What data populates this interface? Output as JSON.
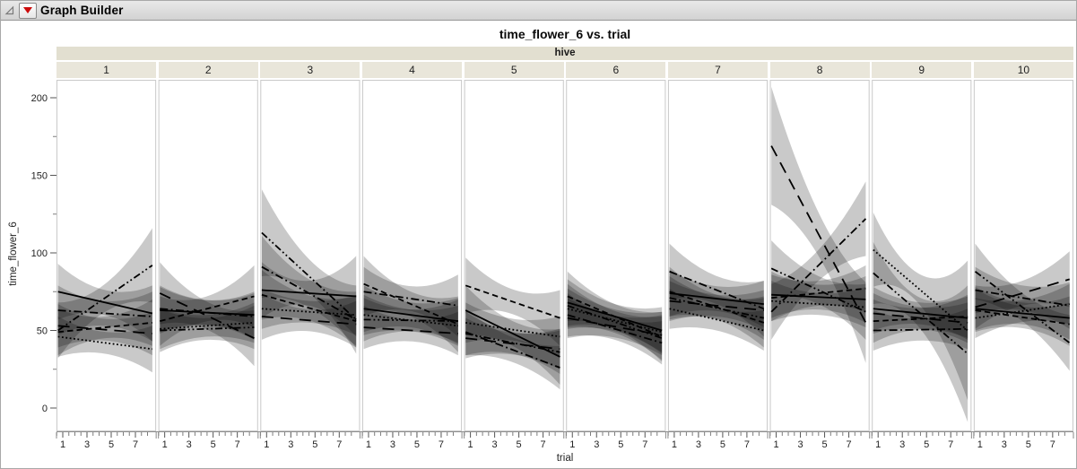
{
  "window": {
    "title": "Graph Builder"
  },
  "chart_data": {
    "type": "line",
    "title": "time_flower_6 vs. trial",
    "xlabel": "trial",
    "ylabel": "time_flower_6",
    "facet": {
      "label": "hive",
      "panels": [
        "1",
        "2",
        "3",
        "4",
        "5",
        "6",
        "7",
        "8",
        "9",
        "10"
      ]
    },
    "x_ticks_labeled": [
      1,
      3,
      5,
      7
    ],
    "x_minor_step": 0.5,
    "x_domain": [
      0.6,
      8.4
    ],
    "y_ticks_labeled": [
      0,
      50,
      100,
      150,
      200
    ],
    "y_minor_ticks": [
      25,
      75,
      125,
      175
    ],
    "y_domain": [
      -15,
      211
    ],
    "grid": false,
    "legend": "none",
    "band_fill": "rgba(0,0,0,0.21)",
    "line_color": "#000000",
    "line_styles": [
      "solid",
      "dash",
      "dot",
      "dash-dot",
      "dash-dot-dot",
      "long-dash"
    ],
    "description": "Per-hive linear fits of time_flower_6 on trial (1-8) with shaded confidence bands; y values given at trial=1 and trial=8; band = half-width at [start, middle, end].",
    "panels": [
      {
        "label": "1",
        "lines": [
          {
            "style": "solid",
            "y": [
              75,
              61
            ],
            "band": [
              18,
              8,
              18
            ]
          },
          {
            "style": "dash",
            "y": [
              49,
              55
            ],
            "band": [
              15,
              7,
              15
            ]
          },
          {
            "style": "dot",
            "y": [
              46,
              38
            ],
            "band": [
              13,
              7,
              15
            ]
          },
          {
            "style": "dash-dot",
            "y": [
              63,
              59
            ],
            "band": [
              16,
              8,
              16
            ]
          },
          {
            "style": "dash-dot-dot",
            "y": [
              50,
              92
            ],
            "band": [
              18,
              9,
              24
            ]
          },
          {
            "style": "long-dash",
            "y": [
              53,
              48
            ],
            "band": [
              14,
              7,
              14
            ]
          }
        ]
      },
      {
        "label": "2",
        "lines": [
          {
            "style": "solid",
            "y": [
              63,
              60
            ],
            "band": [
              15,
              8,
              15
            ]
          },
          {
            "style": "dash",
            "y": [
              56,
              72
            ],
            "band": [
              16,
              8,
              20
            ]
          },
          {
            "style": "dot",
            "y": [
              51,
              55
            ],
            "band": [
              13,
              7,
              13
            ]
          },
          {
            "style": "dash-dot",
            "y": [
              64,
              59
            ],
            "band": [
              15,
              8,
              15
            ]
          },
          {
            "style": "dash-dot-dot",
            "y": [
              50,
              52
            ],
            "band": [
              14,
              7,
              14
            ]
          },
          {
            "style": "long-dash",
            "y": [
              74,
              45
            ],
            "band": [
              20,
              9,
              18
            ]
          }
        ]
      },
      {
        "label": "3",
        "lines": [
          {
            "style": "solid",
            "y": [
              76,
              72
            ],
            "band": [
              18,
              8,
              26
            ]
          },
          {
            "style": "dash",
            "y": [
              73,
              56
            ],
            "band": [
              16,
              8,
              16
            ]
          },
          {
            "style": "dot",
            "y": [
              64,
              60
            ],
            "band": [
              13,
              7,
              13
            ]
          },
          {
            "style": "dash-dot",
            "y": [
              91,
              57
            ],
            "band": [
              20,
              9,
              18
            ]
          },
          {
            "style": "dash-dot-dot",
            "y": [
              113,
              57
            ],
            "band": [
              28,
              11,
              22
            ]
          },
          {
            "style": "long-dash",
            "y": [
              59,
              54
            ],
            "band": [
              15,
              7,
              15
            ]
          }
        ]
      },
      {
        "label": "4",
        "lines": [
          {
            "style": "solid",
            "y": [
              64,
              56
            ],
            "band": [
              15,
              8,
              15
            ]
          },
          {
            "style": "dash",
            "y": [
              80,
              54
            ],
            "band": [
              18,
              8,
              18
            ]
          },
          {
            "style": "dot",
            "y": [
              60,
              53
            ],
            "band": [
              13,
              7,
              13
            ]
          },
          {
            "style": "dash-dot",
            "y": [
              75,
              66
            ],
            "band": [
              16,
              8,
              20
            ]
          },
          {
            "style": "dash-dot-dot",
            "y": [
              57,
              56
            ],
            "band": [
              14,
              7,
              14
            ]
          },
          {
            "style": "long-dash",
            "y": [
              52,
              48
            ],
            "band": [
              14,
              7,
              14
            ]
          }
        ]
      },
      {
        "label": "5",
        "lines": [
          {
            "style": "solid",
            "y": [
              63,
              33
            ],
            "band": [
              16,
              8,
              18
            ]
          },
          {
            "style": "dash",
            "y": [
              79,
              58
            ],
            "band": [
              18,
              8,
              18
            ]
          },
          {
            "style": "dot",
            "y": [
              55,
              46
            ],
            "band": [
              13,
              7,
              13
            ]
          },
          {
            "style": "dash-dot",
            "y": [
              49,
              26
            ],
            "band": [
              15,
              8,
              14
            ]
          },
          {
            "style": "dash-dot-dot",
            "y": [
              48,
              36
            ],
            "band": [
              14,
              7,
              14
            ]
          },
          {
            "style": "long-dash",
            "y": [
              45,
              38
            ],
            "band": [
              13,
              7,
              13
            ]
          }
        ]
      },
      {
        "label": "6",
        "lines": [
          {
            "style": "solid",
            "y": [
              68,
              50
            ],
            "band": [
              15,
              8,
              15
            ]
          },
          {
            "style": "dash",
            "y": [
              72,
              46
            ],
            "band": [
              16,
              8,
              16
            ]
          },
          {
            "style": "dot",
            "y": [
              64,
              49
            ],
            "band": [
              13,
              7,
              13
            ]
          },
          {
            "style": "dash-dot",
            "y": [
              60,
              42
            ],
            "band": [
              14,
              7,
              14
            ]
          },
          {
            "style": "dash-dot-dot",
            "y": [
              66,
              45
            ],
            "band": [
              14,
              7,
              14
            ]
          },
          {
            "style": "long-dash",
            "y": [
              58,
              47
            ],
            "band": [
              13,
              7,
              13
            ]
          }
        ]
      },
      {
        "label": "7",
        "lines": [
          {
            "style": "solid",
            "y": [
              74,
              67
            ],
            "band": [
              15,
              8,
              15
            ]
          },
          {
            "style": "dash",
            "y": [
              75,
              55
            ],
            "band": [
              16,
              8,
              16
            ]
          },
          {
            "style": "dot",
            "y": [
              64,
              50
            ],
            "band": [
              13,
              7,
              13
            ]
          },
          {
            "style": "dash-dot",
            "y": [
              88,
              64
            ],
            "band": [
              18,
              9,
              18
            ]
          },
          {
            "style": "dash-dot-dot",
            "y": [
              71,
              58
            ],
            "band": [
              14,
              7,
              14
            ]
          },
          {
            "style": "long-dash",
            "y": [
              69,
              63
            ],
            "band": [
              13,
              7,
              13
            ]
          }
        ]
      },
      {
        "label": "8",
        "lines": [
          {
            "style": "solid",
            "y": [
              73,
              70
            ],
            "band": [
              15,
              8,
              15
            ]
          },
          {
            "style": "dash",
            "y": [
              71,
              77
            ],
            "band": [
              15,
              8,
              15
            ]
          },
          {
            "style": "dot",
            "y": [
              69,
              65
            ],
            "band": [
              13,
              7,
              13
            ]
          },
          {
            "style": "dash-dot",
            "y": [
              62,
              122
            ],
            "band": [
              18,
              10,
              24
            ]
          },
          {
            "style": "dash-dot-dot",
            "y": [
              90,
              62
            ],
            "band": [
              18,
              9,
              18
            ]
          },
          {
            "style": "long-dash",
            "y": [
              169,
              55
            ],
            "band": [
              38,
              14,
              26
            ]
          }
        ]
      },
      {
        "label": "9",
        "lines": [
          {
            "style": "solid",
            "y": [
              64,
              58
            ],
            "band": [
              14,
              7,
              14
            ]
          },
          {
            "style": "dash",
            "y": [
              56,
              59
            ],
            "band": [
              14,
              7,
              14
            ]
          },
          {
            "style": "dot",
            "y": [
              102,
              50
            ],
            "band": [
              24,
              10,
              45
            ]
          },
          {
            "style": "dash-dot",
            "y": [
              50,
              51
            ],
            "band": [
              13,
              7,
              13
            ]
          },
          {
            "style": "dash-dot-dot",
            "y": [
              87,
              35
            ],
            "band": [
              20,
              10,
              44
            ]
          },
          {
            "style": "long-dash",
            "y": [
              61,
              55
            ],
            "band": [
              13,
              7,
              13
            ]
          }
        ]
      },
      {
        "label": "10",
        "lines": [
          {
            "style": "solid",
            "y": [
              64,
              58
            ],
            "band": [
              14,
              7,
              14
            ]
          },
          {
            "style": "dash",
            "y": [
              63,
              54
            ],
            "band": [
              14,
              7,
              14
            ]
          },
          {
            "style": "dot",
            "y": [
              58,
              67
            ],
            "band": [
              13,
              7,
              13
            ]
          },
          {
            "style": "dash-dot",
            "y": [
              76,
              66
            ],
            "band": [
              15,
              8,
              15
            ]
          },
          {
            "style": "dash-dot-dot",
            "y": [
              88,
              42
            ],
            "band": [
              18,
              9,
              18
            ]
          },
          {
            "style": "long-dash",
            "y": [
              65,
              83
            ],
            "band": [
              14,
              8,
              18
            ]
          }
        ]
      }
    ]
  }
}
